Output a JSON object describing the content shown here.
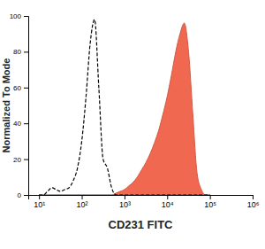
{
  "chart_data": {
    "type": "line",
    "xlabel": "CD231 FITC",
    "ylabel": "Normalized To Mode",
    "log": "x",
    "x": [
      10,
      12.6,
      15.8,
      20,
      25.1,
      31.6,
      39.8,
      50.1,
      63.1,
      79.4,
      100,
      126,
      158,
      200,
      251,
      316,
      398,
      501,
      631,
      794,
      1000,
      1259,
      1585,
      1995,
      2512,
      3162,
      3981,
      5012,
      6310,
      7943,
      10000,
      12589,
      15849,
      19953,
      25119,
      31623,
      39811,
      50119,
      63096,
      79433,
      100000
    ],
    "series": [
      {
        "type": "line",
        "color": "#000000",
        "line_style": "dashed",
        "values": [
          0,
          0,
          2,
          4,
          3,
          2,
          3,
          4,
          8,
          15,
          30,
          55,
          85,
          98,
          60,
          20,
          15,
          4,
          0,
          0,
          0,
          0,
          0,
          0,
          0,
          0,
          0,
          0,
          0,
          0,
          0,
          0,
          0,
          0,
          0,
          0,
          0,
          0,
          0,
          0,
          0
        ]
      },
      {
        "type": "area",
        "color": "#f0684f",
        "line_style": "solid",
        "values": [
          0,
          0,
          0,
          0,
          0,
          0,
          0,
          0,
          0,
          0,
          0,
          0,
          0,
          0,
          0,
          0,
          0,
          0,
          1,
          2,
          3,
          5,
          7,
          10,
          14,
          18,
          23,
          29,
          36,
          45,
          55,
          67,
          80,
          90,
          96,
          80,
          45,
          12,
          3,
          0,
          0
        ]
      }
    ],
    "xlim": [
      5.6,
      1000000
    ],
    "xticks": [
      {
        "value": 10,
        "label": "10¹"
      },
      {
        "value": 100,
        "label": "10²"
      },
      {
        "value": 1000,
        "label": "10³"
      },
      {
        "value": 10000,
        "label": "10⁴"
      },
      {
        "value": 100000,
        "label": "10⁵"
      },
      {
        "value": 1000000,
        "label": "10⁶"
      }
    ],
    "ylim": [
      0,
      100
    ],
    "yticks": [
      0,
      20,
      40,
      60,
      80,
      100
    ],
    "grid": false
  }
}
